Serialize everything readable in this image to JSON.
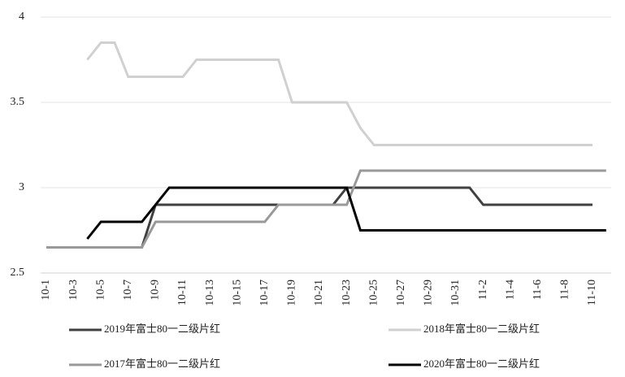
{
  "chart_data": {
    "type": "line",
    "categories": [
      "10-1",
      null,
      "10-3",
      null,
      "10-5",
      null,
      "10-7",
      null,
      "10-9",
      null,
      "10-11",
      null,
      "10-13",
      null,
      "10-15",
      null,
      "10-17",
      null,
      "10-19",
      null,
      "10-21",
      null,
      "10-23",
      null,
      "10-25",
      null,
      "10-27",
      null,
      "10-29",
      null,
      "10-31",
      null,
      "11-2",
      null,
      "11-4",
      null,
      "11-6",
      null,
      "11-8",
      null,
      "11-10",
      null
    ],
    "ylim": [
      2.5,
      4
    ],
    "yticks": [
      2.5,
      3,
      3.5,
      4
    ],
    "grid": true,
    "legend": "bottom",
    "series": [
      {
        "name": "2019年富士80一二级片红",
        "color": "#404040",
        "values": [
          2.65,
          2.65,
          2.65,
          2.65,
          2.65,
          2.65,
          2.65,
          2.65,
          2.9,
          2.9,
          2.9,
          2.9,
          2.9,
          2.9,
          2.9,
          2.9,
          2.9,
          2.9,
          2.9,
          2.9,
          2.9,
          2.9,
          3.0,
          3.0,
          3.0,
          3.0,
          3.0,
          3.0,
          3.0,
          3.0,
          3.0,
          3.0,
          2.9,
          2.9,
          2.9,
          2.9,
          2.9,
          2.9,
          2.9,
          2.9,
          2.9,
          null
        ]
      },
      {
        "name": "2018年富士80一二级片红",
        "color": "#d0d0d0",
        "values": [
          null,
          null,
          null,
          3.75,
          3.85,
          3.85,
          3.65,
          3.65,
          3.65,
          3.65,
          3.65,
          3.75,
          3.75,
          3.75,
          3.75,
          3.75,
          3.75,
          3.75,
          3.5,
          3.5,
          3.5,
          3.5,
          3.5,
          3.35,
          3.25,
          3.25,
          3.25,
          3.25,
          3.25,
          3.25,
          3.25,
          3.25,
          3.25,
          3.25,
          3.25,
          3.25,
          3.25,
          3.25,
          3.25,
          3.25,
          3.25,
          null
        ]
      },
      {
        "name": "2017年富士80一二级片红",
        "color": "#999999",
        "values": [
          2.65,
          2.65,
          2.65,
          2.65,
          2.65,
          2.65,
          2.65,
          2.65,
          2.8,
          2.8,
          2.8,
          2.8,
          2.8,
          2.8,
          2.8,
          2.8,
          2.8,
          2.9,
          2.9,
          2.9,
          2.9,
          2.9,
          2.9,
          3.1,
          3.1,
          3.1,
          3.1,
          3.1,
          3.1,
          3.1,
          3.1,
          3.1,
          3.1,
          3.1,
          3.1,
          3.1,
          3.1,
          3.1,
          3.1,
          3.1,
          3.1,
          3.1
        ]
      },
      {
        "name": "2020年富士80一二级片红",
        "color": "#000000",
        "values": [
          null,
          null,
          null,
          2.7,
          2.8,
          2.8,
          2.8,
          2.8,
          2.9,
          3.0,
          3.0,
          3.0,
          3.0,
          3.0,
          3.0,
          3.0,
          3.0,
          3.0,
          3.0,
          3.0,
          3.0,
          3.0,
          3.0,
          2.75,
          2.75,
          2.75,
          2.75,
          2.75,
          2.75,
          2.75,
          2.75,
          2.75,
          2.75,
          2.75,
          2.75,
          2.75,
          2.75,
          2.75,
          2.75,
          2.75,
          2.75,
          2.75
        ]
      }
    ]
  }
}
